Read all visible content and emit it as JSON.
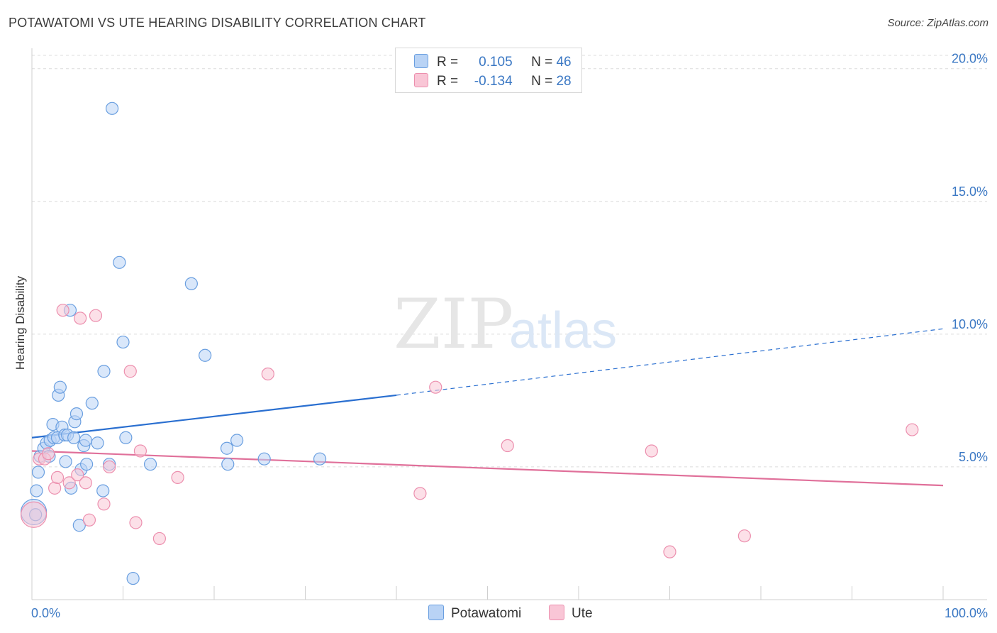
{
  "title": "POTAWATOMI VS UTE HEARING DISABILITY CORRELATION CHART",
  "source": "Source: ZipAtlas.com",
  "watermark": {
    "zip": "ZIP",
    "atlas": "atlas"
  },
  "colors": {
    "series1_fill": "#b9d3f5",
    "series1_stroke": "#6a9fe0",
    "series1_line": "#2a6fd0",
    "series2_fill": "#f9c6d6",
    "series2_stroke": "#ec8fae",
    "series2_line": "#e0709a",
    "tick_text": "#3b78c4",
    "grid": "#dcdcdc"
  },
  "legend": {
    "series1": {
      "r_label": "R =",
      "r_value": "0.105",
      "n_label": "N =",
      "n_value": "46"
    },
    "series2": {
      "r_label": "R =",
      "r_value": "-0.134",
      "n_label": "N =",
      "n_value": "28"
    }
  },
  "bottom_legend": {
    "series1": "Potawatomi",
    "series2": "Ute"
  },
  "chart_data": {
    "type": "scatter",
    "title": "POTAWATOMI VS UTE HEARING DISABILITY CORRELATION CHART",
    "xlabel": "",
    "ylabel": "Hearing Disability",
    "xlim": [
      0,
      100
    ],
    "ylim": [
      0,
      20.5
    ],
    "x_tick_labels": [
      "0.0%",
      "100.0%"
    ],
    "y_ticks": [
      5,
      10,
      15,
      20
    ],
    "y_tick_labels": [
      "5.0%",
      "10.0%",
      "15.0%",
      "20.0%"
    ],
    "grid": true,
    "series": [
      {
        "name": "Potawatomi",
        "r": 0.105,
        "n": 46,
        "trend": {
          "x0": 0,
          "y0": 6.1,
          "x1": 40,
          "y1": 7.7,
          "dashed_to_x": 100,
          "dashed_to_y": 10.2
        },
        "points": [
          {
            "x": 0.2,
            "y": 3.3,
            "big": true
          },
          {
            "x": 0.5,
            "y": 4.1
          },
          {
            "x": 0.7,
            "y": 4.8
          },
          {
            "x": 0.9,
            "y": 5.4
          },
          {
            "x": 1.3,
            "y": 5.7
          },
          {
            "x": 1.6,
            "y": 5.9
          },
          {
            "x": 2.0,
            "y": 6.0
          },
          {
            "x": 1.9,
            "y": 5.4
          },
          {
            "x": 2.4,
            "y": 6.1
          },
          {
            "x": 2.3,
            "y": 6.6
          },
          {
            "x": 2.8,
            "y": 6.1
          },
          {
            "x": 2.9,
            "y": 7.7
          },
          {
            "x": 3.1,
            "y": 8.0
          },
          {
            "x": 3.3,
            "y": 6.5
          },
          {
            "x": 3.6,
            "y": 6.2
          },
          {
            "x": 3.7,
            "y": 5.2
          },
          {
            "x": 3.9,
            "y": 6.2
          },
          {
            "x": 4.2,
            "y": 10.9
          },
          {
            "x": 4.3,
            "y": 4.2
          },
          {
            "x": 4.6,
            "y": 6.1
          },
          {
            "x": 4.7,
            "y": 6.7
          },
          {
            "x": 4.9,
            "y": 7.0
          },
          {
            "x": 5.2,
            "y": 2.8
          },
          {
            "x": 5.4,
            "y": 4.9
          },
          {
            "x": 5.7,
            "y": 5.8
          },
          {
            "x": 5.9,
            "y": 6.0
          },
          {
            "x": 6.0,
            "y": 5.1
          },
          {
            "x": 6.6,
            "y": 7.4
          },
          {
            "x": 7.2,
            "y": 5.9
          },
          {
            "x": 7.8,
            "y": 4.1
          },
          {
            "x": 7.9,
            "y": 8.6
          },
          {
            "x": 8.5,
            "y": 5.1
          },
          {
            "x": 8.8,
            "y": 18.5
          },
          {
            "x": 9.6,
            "y": 12.7
          },
          {
            "x": 10.0,
            "y": 9.7
          },
          {
            "x": 10.3,
            "y": 6.1
          },
          {
            "x": 11.1,
            "y": 0.8
          },
          {
            "x": 13.0,
            "y": 5.1
          },
          {
            "x": 17.5,
            "y": 11.9
          },
          {
            "x": 19.0,
            "y": 9.2
          },
          {
            "x": 21.4,
            "y": 5.7
          },
          {
            "x": 21.5,
            "y": 5.1
          },
          {
            "x": 22.5,
            "y": 6.0
          },
          {
            "x": 25.5,
            "y": 5.3
          },
          {
            "x": 31.6,
            "y": 5.3
          },
          {
            "x": 0.4,
            "y": 3.2
          }
        ]
      },
      {
        "name": "Ute",
        "r": -0.134,
        "n": 28,
        "trend": {
          "x0": 0,
          "y0": 5.6,
          "x1": 100,
          "y1": 4.3
        },
        "points": [
          {
            "x": 0.2,
            "y": 3.2,
            "big": true
          },
          {
            "x": 0.8,
            "y": 5.3
          },
          {
            "x": 1.4,
            "y": 5.3
          },
          {
            "x": 1.8,
            "y": 5.5
          },
          {
            "x": 2.5,
            "y": 4.2
          },
          {
            "x": 2.8,
            "y": 4.6
          },
          {
            "x": 3.4,
            "y": 10.9
          },
          {
            "x": 4.1,
            "y": 4.4
          },
          {
            "x": 5.0,
            "y": 4.7
          },
          {
            "x": 5.3,
            "y": 10.6
          },
          {
            "x": 5.9,
            "y": 4.4
          },
          {
            "x": 6.3,
            "y": 3.0
          },
          {
            "x": 7.0,
            "y": 10.7
          },
          {
            "x": 7.9,
            "y": 3.6
          },
          {
            "x": 8.5,
            "y": 5.0
          },
          {
            "x": 10.8,
            "y": 8.6
          },
          {
            "x": 11.4,
            "y": 2.9
          },
          {
            "x": 11.9,
            "y": 5.6
          },
          {
            "x": 14.0,
            "y": 2.3
          },
          {
            "x": 16.0,
            "y": 4.6
          },
          {
            "x": 25.9,
            "y": 8.5
          },
          {
            "x": 42.6,
            "y": 4.0
          },
          {
            "x": 44.3,
            "y": 8.0
          },
          {
            "x": 52.2,
            "y": 5.8
          },
          {
            "x": 68.0,
            "y": 5.6
          },
          {
            "x": 70.0,
            "y": 1.8
          },
          {
            "x": 78.2,
            "y": 2.4
          },
          {
            "x": 96.6,
            "y": 6.4
          }
        ]
      }
    ]
  }
}
